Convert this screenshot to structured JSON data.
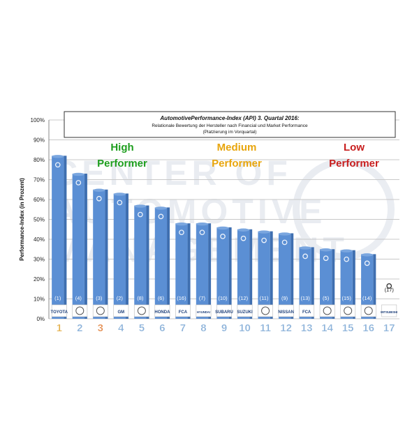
{
  "chart_data": {
    "type": "bar",
    "title": "AutomotivePerformance-Index (API) 3. Quartal 2016:",
    "subtitle_lines": [
      "Relationale Bewertung der Hersteller nach Financial und Market Performance",
      "(Platzierung im Vorquartal)"
    ],
    "ylabel": "Performance-Index (in Prozent)",
    "ylim": [
      0,
      100
    ],
    "y_ticks": [
      "0%",
      "10%",
      "20%",
      "30%",
      "40%",
      "50%",
      "60%",
      "70%",
      "80%",
      "90%",
      "100%"
    ],
    "grid": true,
    "categories": [
      "1",
      "2",
      "3",
      "4",
      "5",
      "6",
      "7",
      "8",
      "9",
      "10",
      "11",
      "12",
      "13",
      "14",
      "15",
      "16",
      "17"
    ],
    "values": [
      82,
      73,
      65,
      63,
      57,
      56,
      48,
      48,
      46,
      45,
      44,
      43,
      36,
      35,
      34.5,
      32.5,
      null
    ],
    "prev_ranks": [
      "(1)",
      "(4)",
      "(3)",
      "(2)",
      "(8)",
      "(6)",
      "(16)",
      "(7)",
      "(10)",
      "(12)",
      "(11)",
      "(9)",
      "(13)",
      "(5)",
      "(15)",
      "(14)",
      "(17)"
    ],
    "brand_labels": [
      "TOYOTA",
      "",
      "",
      "GM",
      "",
      "HONDA",
      "FCA",
      "HYUNDAI",
      "SUBARU",
      "SUZUKI",
      "",
      "NISSAN",
      "FCA",
      "",
      "",
      "",
      "MITSUBISHI"
    ],
    "category_colors": [
      "#e3b04b",
      "#8ab1d9",
      "#e38a4b",
      "#8ab1d9",
      "#8ab1d9",
      "#8ab1d9",
      "#8ab1d9",
      "#8ab1d9",
      "#8ab1d9",
      "#8ab1d9",
      "#8ab1d9",
      "#8ab1d9",
      "#8ab1d9",
      "#8ab1d9",
      "#8ab1d9",
      "#8ab1d9",
      "#8ab1d9"
    ],
    "bar_color": "#5b8fd4",
    "groups": [
      {
        "line1": "High",
        "line2": "Performer",
        "color": "#1e9e1e"
      },
      {
        "line1": "Medium",
        "line2": "Performer",
        "color": "#e8a50c"
      },
      {
        "line1": "Low",
        "line2": "Performer",
        "color": "#c81e1e"
      }
    ],
    "watermark": "CENTER OF AUTOMOTIVE MANAGEMENT"
  }
}
